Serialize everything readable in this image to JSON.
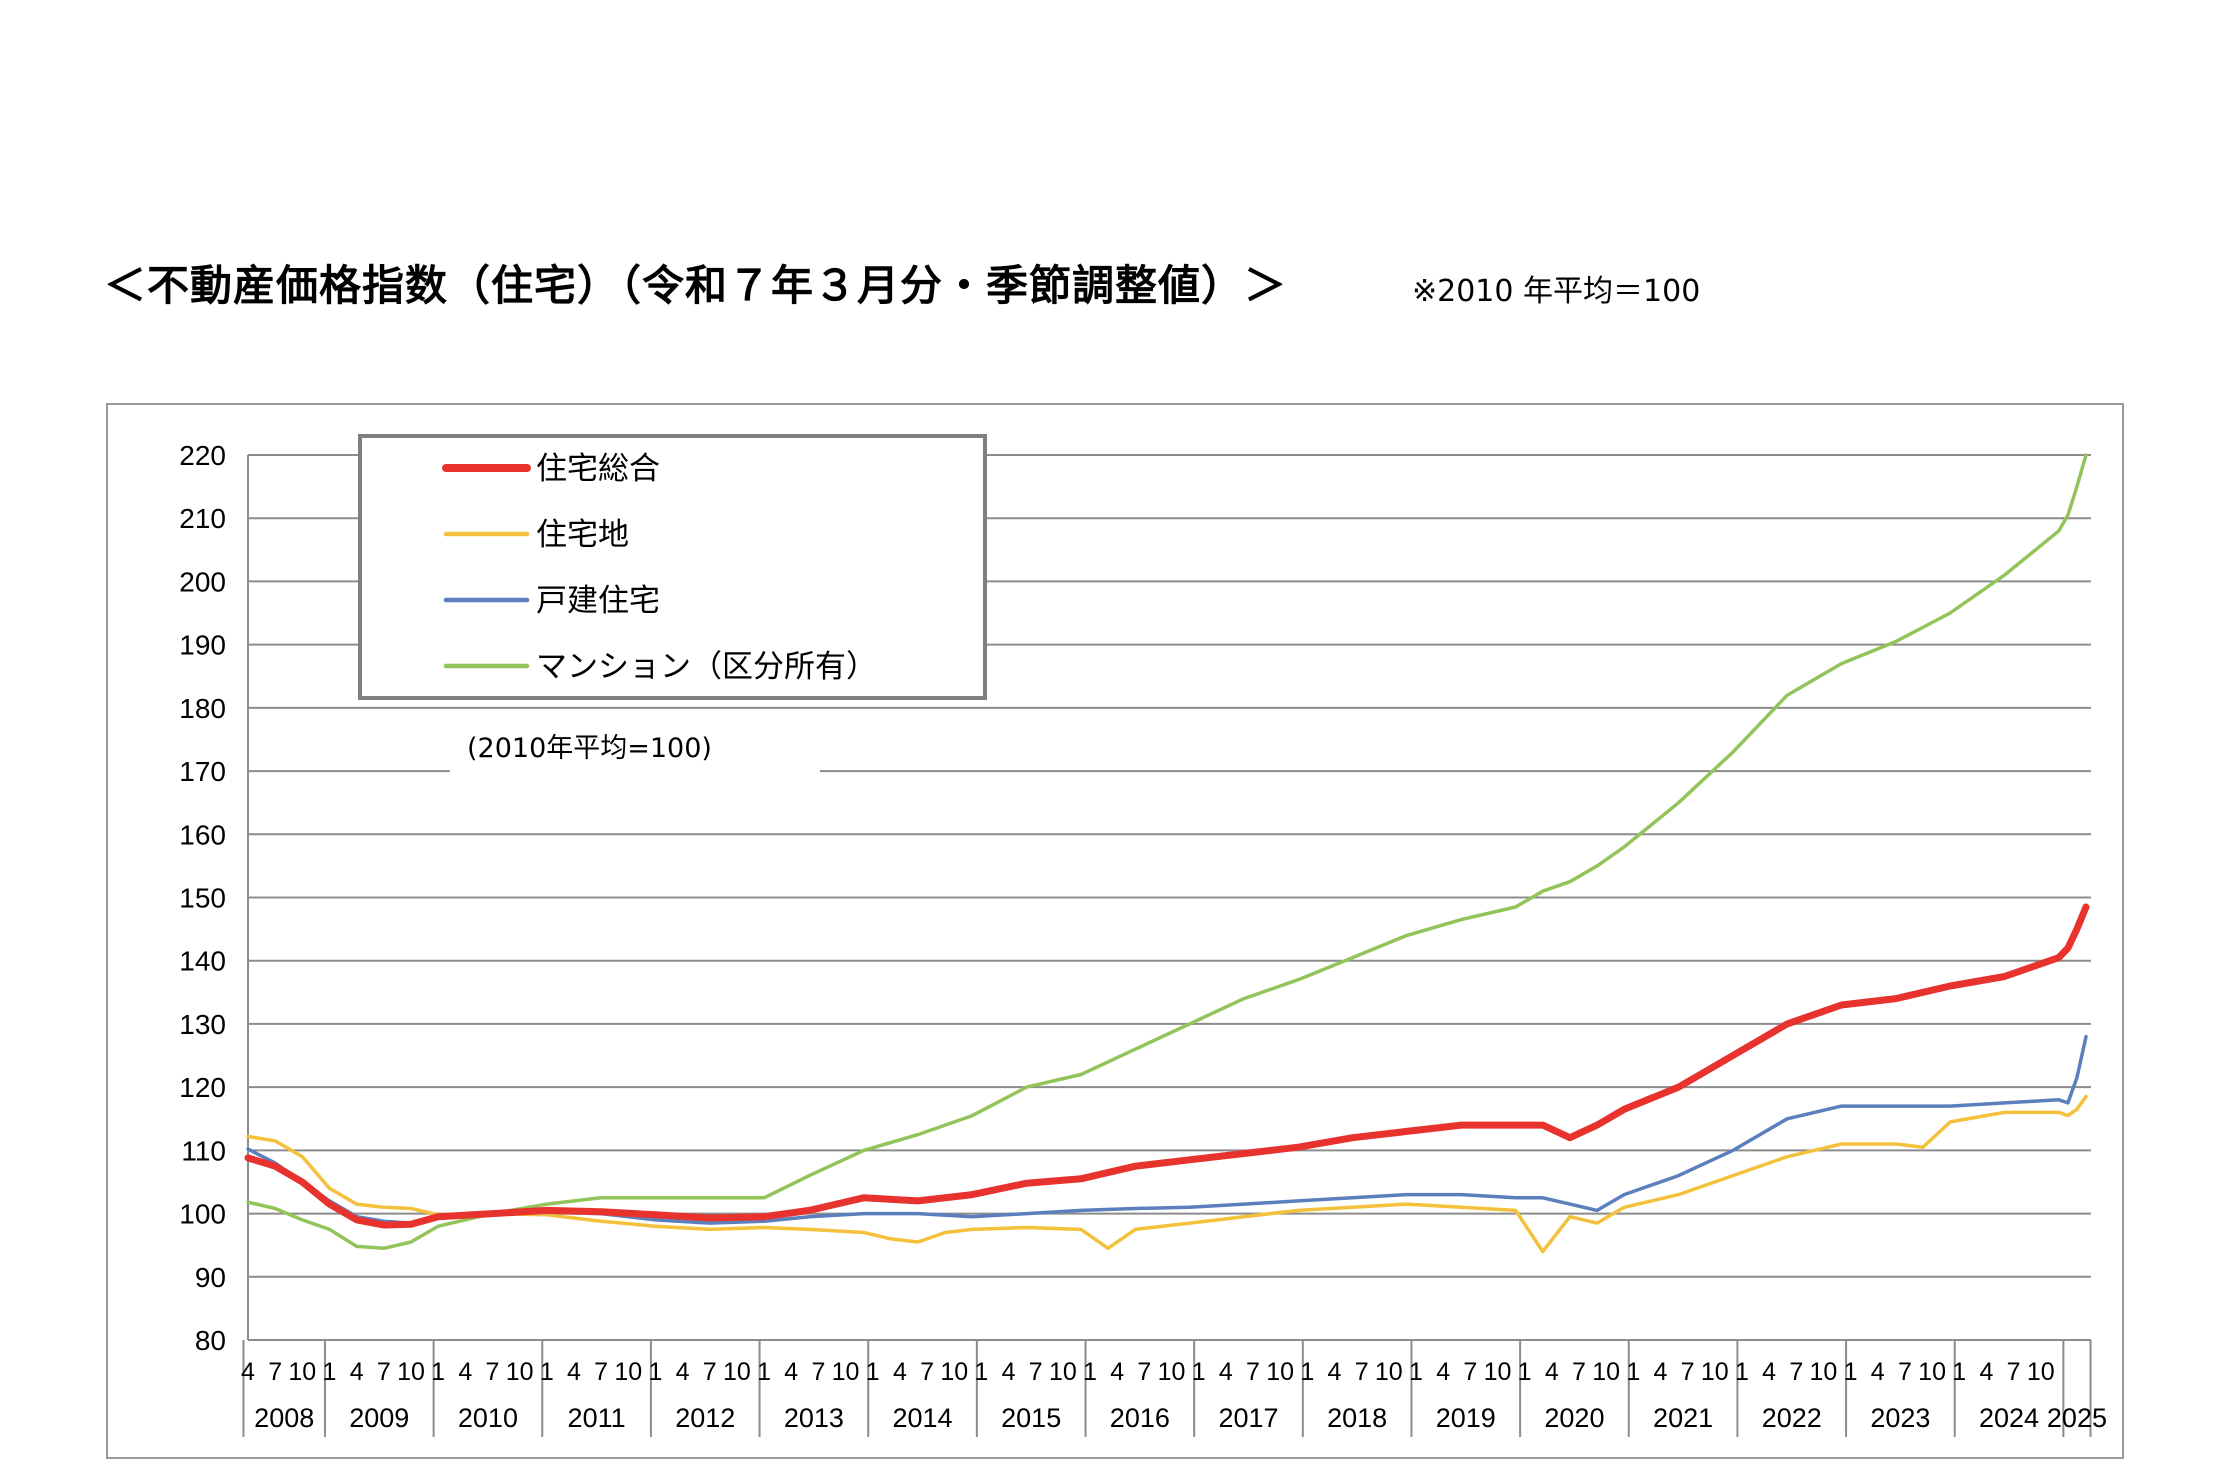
{
  "header": {
    "title": "＜不動産価格指数（住宅）（令和７年３月分・季節調整値）＞",
    "note": "※2010 年平均＝100"
  },
  "chart_data": {
    "type": "line",
    "title": "",
    "base_note": "(2010年平均=100)",
    "xlabel": "",
    "ylabel": "",
    "ylim": [
      80,
      220
    ],
    "yticks": [
      80,
      90,
      100,
      110,
      120,
      130,
      140,
      150,
      160,
      170,
      180,
      190,
      200,
      210,
      220
    ],
    "grid": true,
    "legend_position": "top-left",
    "x_start": "2008-04",
    "x_end": "2025-03",
    "month_tick_labels": [
      "4",
      "7",
      "10",
      "1"
    ],
    "years": [
      "2008",
      "2009",
      "2010",
      "2011",
      "2012",
      "2013",
      "2014",
      "2015",
      "2016",
      "2017",
      "2018",
      "2019",
      "2020",
      "2021",
      "2022",
      "2023",
      "2024",
      "2025"
    ],
    "series": [
      {
        "name": "住宅総合",
        "color": "#e8322d",
        "width": 7,
        "points": [
          [
            "2008-04",
            108.8
          ],
          [
            "2008-07",
            107.5
          ],
          [
            "2008-10",
            105
          ],
          [
            "2009-01",
            101.5
          ],
          [
            "2009-04",
            99
          ],
          [
            "2009-07",
            98.2
          ],
          [
            "2009-10",
            98.3
          ],
          [
            "2010-01",
            99.5
          ],
          [
            "2010-07",
            100
          ],
          [
            "2011-01",
            100.5
          ],
          [
            "2011-07",
            100.3
          ],
          [
            "2012-01",
            99.8
          ],
          [
            "2012-07",
            99.3
          ],
          [
            "2013-01",
            99.5
          ],
          [
            "2013-06",
            100.5
          ],
          [
            "2013-12",
            102.5
          ],
          [
            "2014-06",
            102
          ],
          [
            "2014-12",
            103
          ],
          [
            "2015-06",
            104.8
          ],
          [
            "2015-12",
            105.5
          ],
          [
            "2016-06",
            107.5
          ],
          [
            "2016-12",
            108.5
          ],
          [
            "2017-06",
            109.5
          ],
          [
            "2017-12",
            110.5
          ],
          [
            "2018-06",
            112
          ],
          [
            "2018-12",
            113
          ],
          [
            "2019-06",
            114
          ],
          [
            "2019-12",
            114
          ],
          [
            "2020-03",
            114
          ],
          [
            "2020-06",
            112
          ],
          [
            "2020-09",
            114
          ],
          [
            "2020-12",
            116.5
          ],
          [
            "2021-06",
            120
          ],
          [
            "2021-12",
            125
          ],
          [
            "2022-06",
            130
          ],
          [
            "2022-12",
            133
          ],
          [
            "2023-06",
            134
          ],
          [
            "2023-12",
            136
          ],
          [
            "2024-06",
            137.5
          ],
          [
            "2024-12",
            140.5
          ],
          [
            "2025-01",
            142
          ],
          [
            "2025-02",
            145
          ],
          [
            "2025-03",
            148.5
          ]
        ]
      },
      {
        "name": "住宅地",
        "color": "#f4c13c",
        "width": 3.5,
        "points": [
          [
            "2008-04",
            112.2
          ],
          [
            "2008-07",
            111.5
          ],
          [
            "2008-10",
            109
          ],
          [
            "2009-01",
            104
          ],
          [
            "2009-04",
            101.5
          ],
          [
            "2009-07",
            101
          ],
          [
            "2009-10",
            100.8
          ],
          [
            "2010-01",
            99.8
          ],
          [
            "2010-07",
            100
          ],
          [
            "2011-01",
            99.8
          ],
          [
            "2011-07",
            98.8
          ],
          [
            "2012-01",
            98
          ],
          [
            "2012-07",
            97.5
          ],
          [
            "2013-01",
            97.8
          ],
          [
            "2013-06",
            97.5
          ],
          [
            "2013-12",
            97
          ],
          [
            "2014-03",
            96
          ],
          [
            "2014-06",
            95.5
          ],
          [
            "2014-09",
            97
          ],
          [
            "2014-12",
            97.5
          ],
          [
            "2015-06",
            97.8
          ],
          [
            "2015-12",
            97.5
          ],
          [
            "2016-03",
            94.5
          ],
          [
            "2016-06",
            97.5
          ],
          [
            "2016-12",
            98.5
          ],
          [
            "2017-06",
            99.5
          ],
          [
            "2017-12",
            100.5
          ],
          [
            "2018-06",
            101
          ],
          [
            "2018-12",
            101.5
          ],
          [
            "2019-06",
            101
          ],
          [
            "2019-12",
            100.5
          ],
          [
            "2020-03",
            94
          ],
          [
            "2020-06",
            99.5
          ],
          [
            "2020-09",
            98.5
          ],
          [
            "2020-12",
            101
          ],
          [
            "2021-06",
            103
          ],
          [
            "2021-12",
            106
          ],
          [
            "2022-06",
            109
          ],
          [
            "2022-12",
            111
          ],
          [
            "2023-06",
            111
          ],
          [
            "2023-09",
            110.5
          ],
          [
            "2023-12",
            114.5
          ],
          [
            "2024-06",
            116
          ],
          [
            "2024-12",
            116
          ],
          [
            "2025-01",
            115.5
          ],
          [
            "2025-02",
            116.5
          ],
          [
            "2025-03",
            118.5
          ]
        ]
      },
      {
        "name": "戸建住宅",
        "color": "#5b7fbd",
        "width": 3.5,
        "points": [
          [
            "2008-04",
            110.2
          ],
          [
            "2008-07",
            108
          ],
          [
            "2008-10",
            105
          ],
          [
            "2009-01",
            102
          ],
          [
            "2009-04",
            99.5
          ],
          [
            "2009-07",
            98.8
          ],
          [
            "2009-10",
            98.5
          ],
          [
            "2010-01",
            99.5
          ],
          [
            "2010-07",
            100
          ],
          [
            "2011-01",
            100.2
          ],
          [
            "2011-07",
            100
          ],
          [
            "2012-01",
            99
          ],
          [
            "2012-07",
            98.5
          ],
          [
            "2013-01",
            98.8
          ],
          [
            "2013-06",
            99.5
          ],
          [
            "2013-12",
            100
          ],
          [
            "2014-06",
            100
          ],
          [
            "2014-12",
            99.5
          ],
          [
            "2015-06",
            100
          ],
          [
            "2015-12",
            100.5
          ],
          [
            "2016-06",
            100.8
          ],
          [
            "2016-12",
            101
          ],
          [
            "2017-06",
            101.5
          ],
          [
            "2017-12",
            102
          ],
          [
            "2018-06",
            102.5
          ],
          [
            "2018-12",
            103
          ],
          [
            "2019-06",
            103
          ],
          [
            "2019-12",
            102.5
          ],
          [
            "2020-03",
            102.5
          ],
          [
            "2020-06",
            101.5
          ],
          [
            "2020-09",
            100.5
          ],
          [
            "2020-12",
            103
          ],
          [
            "2021-06",
            106
          ],
          [
            "2021-12",
            110
          ],
          [
            "2022-06",
            115
          ],
          [
            "2022-12",
            117
          ],
          [
            "2023-06",
            117
          ],
          [
            "2023-12",
            117
          ],
          [
            "2024-06",
            117.5
          ],
          [
            "2024-12",
            118
          ],
          [
            "2025-01",
            117.5
          ],
          [
            "2025-02",
            121.5
          ],
          [
            "2025-03",
            128
          ]
        ]
      },
      {
        "name": "マンション（区分所有）",
        "color": "#92c45a",
        "width": 3.5,
        "points": [
          [
            "2008-04",
            101.8
          ],
          [
            "2008-07",
            100.8
          ],
          [
            "2008-10",
            99
          ],
          [
            "2009-01",
            97.5
          ],
          [
            "2009-04",
            94.8
          ],
          [
            "2009-07",
            94.5
          ],
          [
            "2009-10",
            95.5
          ],
          [
            "2010-01",
            98
          ],
          [
            "2010-07",
            100
          ],
          [
            "2011-01",
            101.5
          ],
          [
            "2011-07",
            102.5
          ],
          [
            "2012-01",
            102.5
          ],
          [
            "2012-07",
            102.5
          ],
          [
            "2013-01",
            102.5
          ],
          [
            "2013-06",
            106
          ],
          [
            "2013-12",
            110
          ],
          [
            "2014-06",
            112.5
          ],
          [
            "2014-12",
            115.5
          ],
          [
            "2015-06",
            120
          ],
          [
            "2015-12",
            122
          ],
          [
            "2016-06",
            126
          ],
          [
            "2016-12",
            130
          ],
          [
            "2017-06",
            134
          ],
          [
            "2017-12",
            137
          ],
          [
            "2018-06",
            140.5
          ],
          [
            "2018-12",
            144
          ],
          [
            "2019-06",
            146.5
          ],
          [
            "2019-12",
            148.5
          ],
          [
            "2020-03",
            151
          ],
          [
            "2020-06",
            152.5
          ],
          [
            "2020-09",
            155
          ],
          [
            "2020-12",
            158
          ],
          [
            "2021-06",
            165
          ],
          [
            "2021-12",
            173
          ],
          [
            "2022-06",
            182
          ],
          [
            "2022-12",
            187
          ],
          [
            "2023-06",
            190.5
          ],
          [
            "2023-12",
            195
          ],
          [
            "2024-06",
            201
          ],
          [
            "2024-12",
            208
          ],
          [
            "2025-01",
            210.5
          ],
          [
            "2025-02",
            215
          ],
          [
            "2025-03",
            220
          ]
        ]
      }
    ]
  }
}
